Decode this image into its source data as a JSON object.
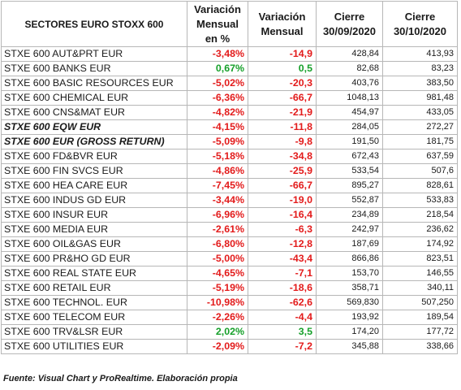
{
  "headers": {
    "sector": "SECTORES EURO STOXX 600",
    "pct_line1": "Variación",
    "pct_line2": "Mensual",
    "pct_line3": "en %",
    "var_line1": "Variación",
    "var_line2": "Mensual",
    "c1_line1": "Cierre",
    "c1_line2": "30/09/2020",
    "c2_line1": "Cierre",
    "c2_line2": "30/10/2020"
  },
  "rows": [
    {
      "name": "STXE 600 AUT&PRT EUR",
      "pct": "-3,48%",
      "var": "-14,9",
      "c1": "428,84",
      "c2": "413,93",
      "sign": "neg",
      "emph": false
    },
    {
      "name": "STXE 600 BANKS EUR",
      "pct": "0,67%",
      "var": "0,5",
      "c1": "82,68",
      "c2": "83,23",
      "sign": "pos",
      "emph": false
    },
    {
      "name": "STXE 600 BASIC RESOURCES EUR",
      "pct": "-5,02%",
      "var": "-20,3",
      "c1": "403,76",
      "c2": "383,50",
      "sign": "neg",
      "emph": false
    },
    {
      "name": "STXE 600 CHEMICAL EUR",
      "pct": "-6,36%",
      "var": "-66,7",
      "c1": "1048,13",
      "c2": "981,48",
      "sign": "neg",
      "emph": false
    },
    {
      "name": "STXE 600 CNS&MAT EUR",
      "pct": "-4,82%",
      "var": "-21,9",
      "c1": "454,97",
      "c2": "433,05",
      "sign": "neg",
      "emph": false
    },
    {
      "name": "STXE 600 EQW EUR",
      "pct": "-4,15%",
      "var": "-11,8",
      "c1": "284,05",
      "c2": "272,27",
      "sign": "neg",
      "emph": true
    },
    {
      "name": "STXE 600 EUR (GROSS RETURN)",
      "pct": "-5,09%",
      "var": "-9,8",
      "c1": "191,50",
      "c2": "181,75",
      "sign": "neg",
      "emph": true
    },
    {
      "name": "STXE 600 FD&BVR EUR",
      "pct": "-5,18%",
      "var": "-34,8",
      "c1": "672,43",
      "c2": "637,59",
      "sign": "neg",
      "emph": false
    },
    {
      "name": "STXE 600 FIN SVCS EUR",
      "pct": "-4,86%",
      "var": "-25,9",
      "c1": "533,54",
      "c2": "507,6",
      "sign": "neg",
      "emph": false
    },
    {
      "name": "STXE 600 HEA CARE EUR",
      "pct": "-7,45%",
      "var": "-66,7",
      "c1": "895,27",
      "c2": "828,61",
      "sign": "neg",
      "emph": false
    },
    {
      "name": "STXE 600 INDUS GD EUR",
      "pct": "-3,44%",
      "var": "-19,0",
      "c1": "552,87",
      "c2": "533,83",
      "sign": "neg",
      "emph": false
    },
    {
      "name": "STXE 600 INSUR EUR",
      "pct": "-6,96%",
      "var": "-16,4",
      "c1": "234,89",
      "c2": "218,54",
      "sign": "neg",
      "emph": false
    },
    {
      "name": "STXE 600 MEDIA EUR",
      "pct": "-2,61%",
      "var": "-6,3",
      "c1": "242,97",
      "c2": "236,62",
      "sign": "neg",
      "emph": false
    },
    {
      "name": "STXE 600 OIL&GAS EUR",
      "pct": "-6,80%",
      "var": "-12,8",
      "c1": "187,69",
      "c2": "174,92",
      "sign": "neg",
      "emph": false
    },
    {
      "name": "STXE 600 PR&HO GD EUR",
      "pct": "-5,00%",
      "var": "-43,4",
      "c1": "866,86",
      "c2": "823,51",
      "sign": "neg",
      "emph": false
    },
    {
      "name": "STXE 600 REAL STATE EUR",
      "pct": "-4,65%",
      "var": "-7,1",
      "c1": "153,70",
      "c2": "146,55",
      "sign": "neg",
      "emph": false
    },
    {
      "name": "STXE 600 RETAIL EUR",
      "pct": "-5,19%",
      "var": "-18,6",
      "c1": "358,71",
      "c2": "340,11",
      "sign": "neg",
      "emph": false
    },
    {
      "name": "STXE 600 TECHNOL. EUR",
      "pct": "-10,98%",
      "var": "-62,6",
      "c1": "569,830",
      "c2": "507,250",
      "sign": "neg",
      "emph": false
    },
    {
      "name": "STXE 600 TELECOM EUR",
      "pct": "-2,26%",
      "var": "-4,4",
      "c1": "193,92",
      "c2": "189,54",
      "sign": "neg",
      "emph": false
    },
    {
      "name": "STXE 600 TRV&LSR EUR",
      "pct": "2,02%",
      "var": "3,5",
      "c1": "174,20",
      "c2": "177,72",
      "sign": "pos",
      "emph": false
    },
    {
      "name": "STXE 600 UTILITIES EUR",
      "pct": "-2,09%",
      "var": "-7,2",
      "c1": "345,88",
      "c2": "338,66",
      "sign": "neg",
      "emph": false
    }
  ],
  "colors": {
    "negative": "#e31b1b",
    "positive": "#16a02a"
  },
  "source": "Fuente: Visual Chart y ProRealtime. Elaboración propia"
}
